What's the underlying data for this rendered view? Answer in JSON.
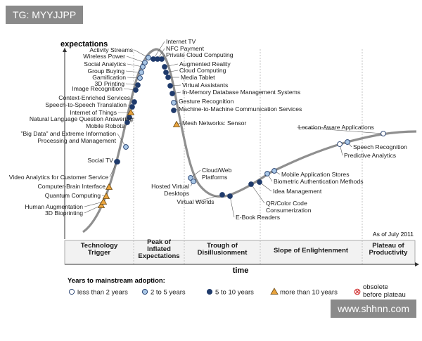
{
  "watermarks": {
    "top_left": "TG: MYYJJPP",
    "bottom_right": "www.shhnn.com"
  },
  "chart_data": {
    "type": "line",
    "title": "",
    "ylabel": "expectations",
    "xlabel": "time",
    "date_note": "As of July 2011",
    "phases": [
      {
        "key": "trigger",
        "label": [
          "Technology",
          "Trigger"
        ]
      },
      {
        "key": "peak",
        "label": [
          "Peak of",
          "Inflated",
          "Expectations"
        ]
      },
      {
        "key": "trough",
        "label": [
          "Trough of",
          "Disillusionment"
        ]
      },
      {
        "key": "slope",
        "label": [
          "Slope of Enlightenment"
        ]
      },
      {
        "key": "plateau",
        "label": [
          "Plateau of",
          "Productivity"
        ]
      }
    ],
    "legend": {
      "title": "Years to mainstream adoption:",
      "items": [
        {
          "key": "lt2",
          "label": "less than 2 years",
          "color": "#ffffff"
        },
        {
          "key": "2to5",
          "label": "2 to 5 years",
          "color": "#a9c7e6"
        },
        {
          "key": "5to10",
          "label": "5 to 10 years",
          "color": "#1f3a6b"
        },
        {
          "key": "gt10",
          "label": "more than 10 years",
          "color": "#e8a33d"
        },
        {
          "key": "obsolete",
          "label": [
            "obsolete",
            "before plateau"
          ],
          "color": "#d43a3a"
        }
      ]
    },
    "technologies": [
      {
        "name": "3D Bioprinting",
        "cat": "gt10"
      },
      {
        "name": "Human Augmentation",
        "cat": "gt10"
      },
      {
        "name": "Quantum Computing",
        "cat": "gt10"
      },
      {
        "name": "Computer-Brain Interface",
        "cat": "gt10"
      },
      {
        "name": "Video Analytics for Customer Service",
        "cat": "5to10"
      },
      {
        "name": "Social TV",
        "cat": "5to10"
      },
      {
        "name": [
          "\"Big Data\" and Extreme Information",
          "Processing and Management"
        ],
        "cat": "2to5"
      },
      {
        "name": "Mobile Robots",
        "cat": "5to10"
      },
      {
        "name": "Natural Language Question Answering",
        "cat": "5to10"
      },
      {
        "name": "Internet of Things",
        "cat": "gt10"
      },
      {
        "name": "Speech-to-Speech Translation",
        "cat": "5to10"
      },
      {
        "name": "Context-Enriched Services",
        "cat": "5to10"
      },
      {
        "name": "Image Recognition",
        "cat": "5to10"
      },
      {
        "name": "3D Printing",
        "cat": "5to10"
      },
      {
        "name": "Gamification",
        "cat": "2to5"
      },
      {
        "name": "Group Buying",
        "cat": "2to5"
      },
      {
        "name": "Social Analytics",
        "cat": "2to5"
      },
      {
        "name": "Wireless Power",
        "cat": "2to5"
      },
      {
        "name": "Activity Streams",
        "cat": "2to5"
      },
      {
        "name": "Internet TV",
        "cat": "5to10"
      },
      {
        "name": "NFC Payment",
        "cat": "5to10"
      },
      {
        "name": "Private Cloud Computing",
        "cat": "5to10"
      },
      {
        "name": "Augmented Reality",
        "cat": "5to10"
      },
      {
        "name": "Cloud Computing",
        "cat": "5to10"
      },
      {
        "name": "Media Tablet",
        "cat": "5to10"
      },
      {
        "name": "Virtual Assistants",
        "cat": "5to10"
      },
      {
        "name": "In-Memory Database Management Systems",
        "cat": "5to10"
      },
      {
        "name": "Gesture Recognition",
        "cat": "2to5"
      },
      {
        "name": "Machine-to-Machine Communication Services",
        "cat": "5to10"
      },
      {
        "name": "Mesh Networks: Sensor",
        "cat": "gt10"
      },
      {
        "name": [
          "Cloud/Web",
          "Platforms"
        ],
        "cat": "2to5"
      },
      {
        "name": [
          "Hosted Virtual",
          "Desktops"
        ],
        "cat": "2to5"
      },
      {
        "name": "Virtual Worlds",
        "cat": "5to10"
      },
      {
        "name": "E-Book Readers",
        "cat": "5to10"
      },
      {
        "name": [
          "QR/Color Code",
          "Consumerization"
        ],
        "cat": "5to10"
      },
      {
        "name": "Idea Management",
        "cat": "5to10"
      },
      {
        "name": "Biometric Authentication Methods",
        "cat": "2to5"
      },
      {
        "name": "Mobile Application Stores",
        "cat": "2to5"
      },
      {
        "name": "Predictive Analytics",
        "cat": "lt2"
      },
      {
        "name": "Speech Recognition",
        "cat": "2to5"
      },
      {
        "name": "Location-Aware Applications",
        "cat": "lt2"
      }
    ]
  }
}
